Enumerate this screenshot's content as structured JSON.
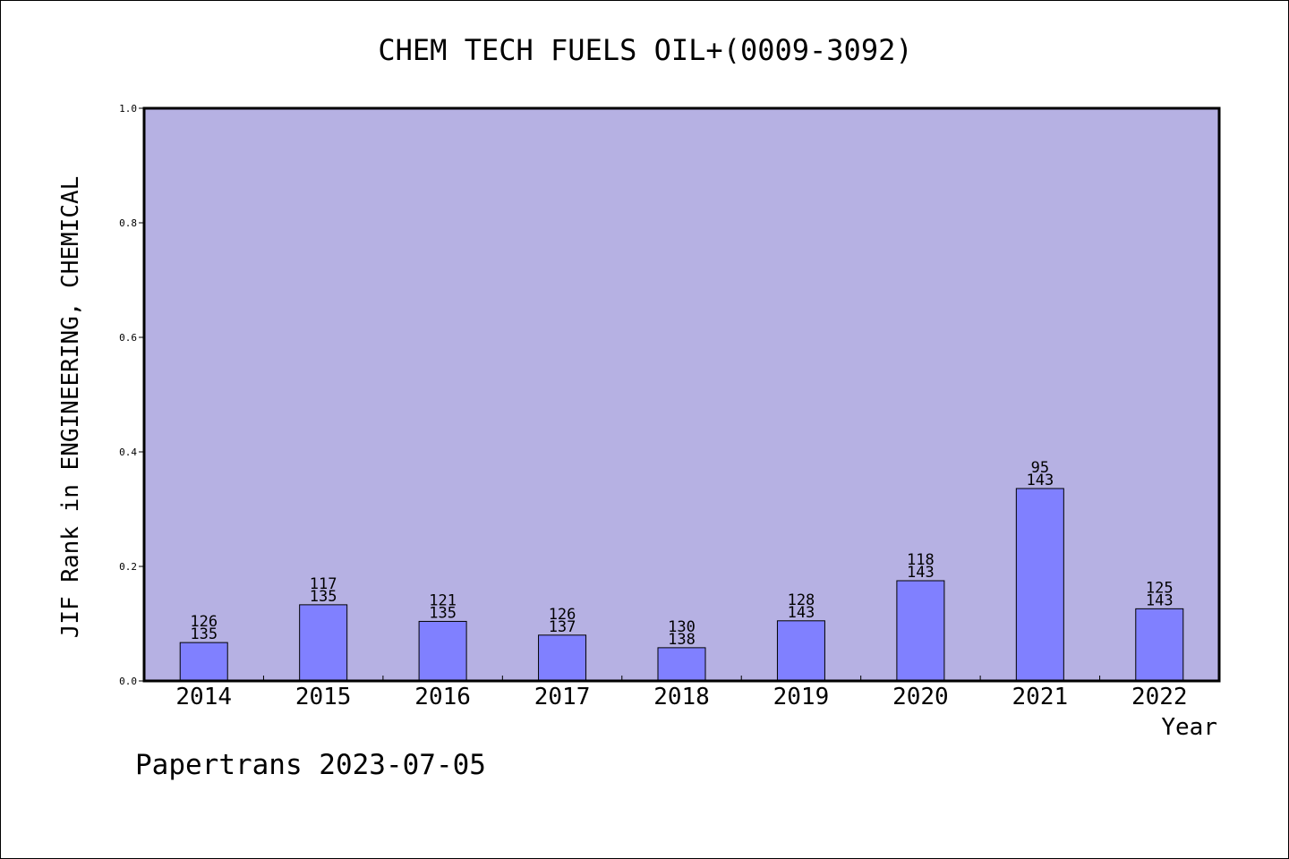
{
  "chart_data": {
    "type": "bar",
    "title": "CHEM TECH FUELS OIL+(0009-3092)",
    "ylabel": "JIF Rank in ENGINEERING, CHEMICAL",
    "xlabel": "Year",
    "categories": [
      "2014",
      "2015",
      "2016",
      "2017",
      "2018",
      "2019",
      "2020",
      "2021",
      "2022"
    ],
    "values": [
      0.067,
      0.133,
      0.104,
      0.08,
      0.058,
      0.105,
      0.175,
      0.336,
      0.126
    ],
    "rank": [
      "126",
      "117",
      "121",
      "126",
      "130",
      "128",
      "118",
      "95",
      "125"
    ],
    "total": [
      "135",
      "135",
      "135",
      "137",
      "138",
      "143",
      "143",
      "143",
      "143"
    ],
    "ylim": [
      0,
      1.0
    ],
    "yticks": [
      "0.0",
      "0.2",
      "0.4",
      "0.6",
      "0.8",
      "1.0"
    ],
    "grid": false,
    "colors": {
      "plot_bg": "#b6b1e3",
      "bar": "#8080ff",
      "bar_stroke": "#000000"
    }
  },
  "footer": "Papertrans 2023-07-05"
}
